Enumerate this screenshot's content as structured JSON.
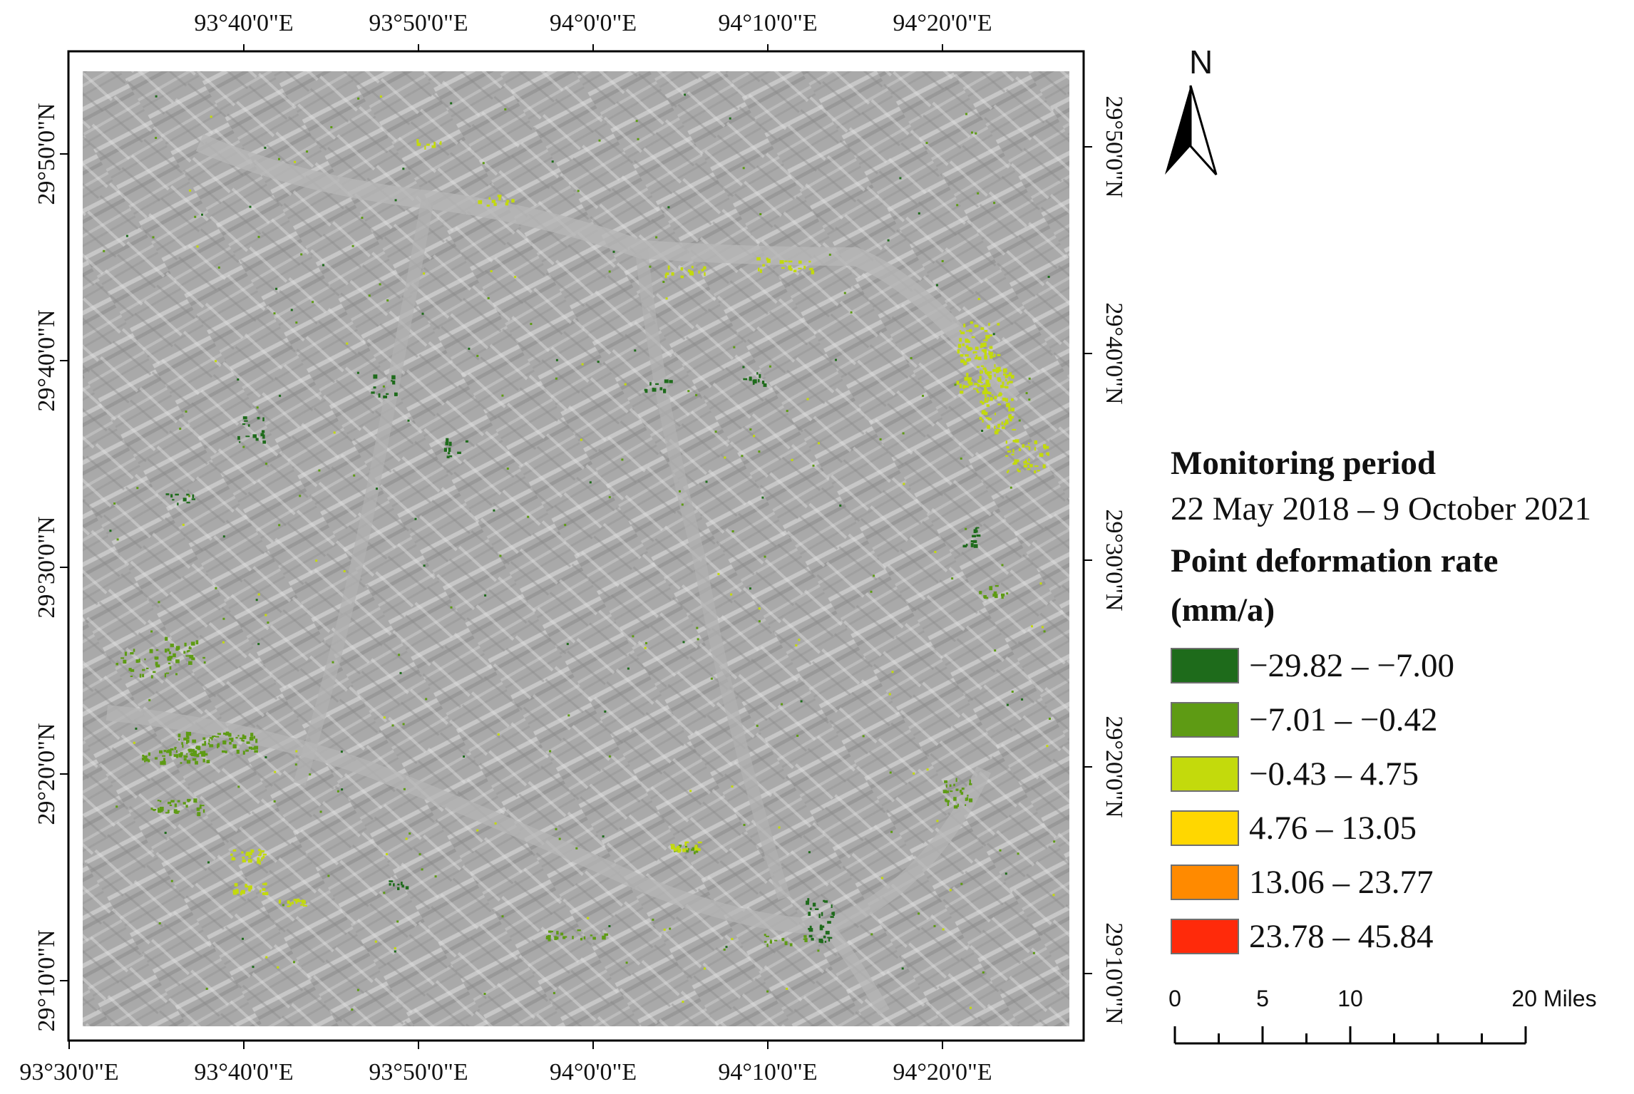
{
  "map": {
    "top_ticks": [
      "93°40'0\"E",
      "93°50'0\"E",
      "94°0'0\"E",
      "94°10'0\"E",
      "94°20'0\"E"
    ],
    "bottom_ticks": [
      "93°30'0\"E",
      "93°40'0\"E",
      "93°50'0\"E",
      "94°0'0\"E",
      "94°10'0\"E",
      "94°20'0\"E"
    ],
    "left_ticks": [
      "29°50'0\"N",
      "29°40'0\"N",
      "29°30'0\"N",
      "29°20'0\"N",
      "29°10'0\"N"
    ],
    "right_ticks": [
      "29°50'0\"N",
      "29°40'0\"N",
      "29°30'0\"N",
      "29°20'0\"N",
      "29°10'0\"N"
    ],
    "base_layer": "grey hillshade terrain",
    "north_arrow": {
      "label": "N",
      "icon": "north-arrow-icon"
    }
  },
  "legend": {
    "title": "Monitoring period",
    "period": "22 May 2018 – 9 October 2021",
    "subtitle": "Point deformation rate",
    "unit": "(mm/a)",
    "classes": [
      {
        "label": "−29.82 – −7.00",
        "color": "#1e6b1b"
      },
      {
        "label": "−7.01 – −0.42",
        "color": "#5e9b14"
      },
      {
        "label": "−0.43 – 4.75",
        "color": "#c3da0c"
      },
      {
        "label": "4.76 – 13.05",
        "color": "#ffd700"
      },
      {
        "label": "13.06 – 23.77",
        "color": "#ff8a00"
      },
      {
        "label": "23.78 – 45.84",
        "color": "#ff2a0a"
      }
    ]
  },
  "scale_bar": {
    "labels": [
      "0",
      "5",
      "10",
      "20 Miles"
    ],
    "values": [
      0,
      5,
      10,
      20
    ]
  }
}
